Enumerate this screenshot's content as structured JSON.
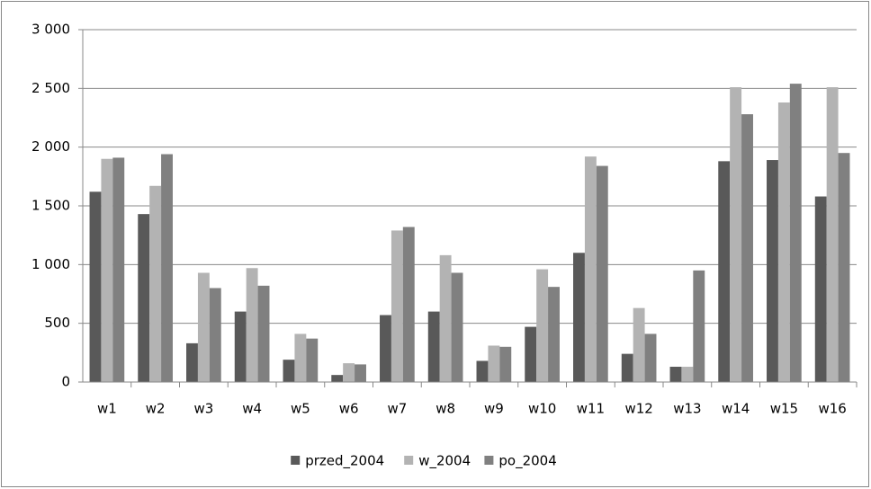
{
  "chart_data": {
    "type": "bar",
    "categories": [
      "w1",
      "w2",
      "w3",
      "w4",
      "w5",
      "w6",
      "w7",
      "w8",
      "w9",
      "w10",
      "w11",
      "w12",
      "w13",
      "w14",
      "w15",
      "w16"
    ],
    "series": [
      {
        "name": "przed_2004",
        "color": "#595959",
        "values": [
          1620,
          1430,
          330,
          600,
          190,
          60,
          570,
          600,
          180,
          470,
          1100,
          240,
          130,
          1880,
          1890,
          1580
        ]
      },
      {
        "name": "w_2004",
        "color": "#b3b3b3",
        "values": [
          1900,
          1670,
          930,
          970,
          410,
          160,
          1290,
          1080,
          310,
          960,
          1920,
          630,
          130,
          2510,
          2380,
          2510
        ]
      },
      {
        "name": "po_2004",
        "color": "#808080",
        "values": [
          1910,
          1940,
          800,
          820,
          370,
          150,
          1320,
          930,
          300,
          810,
          1840,
          410,
          950,
          2280,
          2540,
          1950
        ]
      }
    ],
    "ylim": [
      0,
      3000
    ],
    "yticks": [
      0,
      500,
      {
        "value": 1000,
        "label": "1 000"
      },
      {
        "value": 1500,
        "label": "1 500"
      },
      {
        "value": 2000,
        "label": "2 000"
      },
      {
        "value": 2500,
        "label": "2 500"
      },
      {
        "value": 3000,
        "label": "3 000"
      }
    ],
    "grid": true,
    "legend": "bottom"
  }
}
